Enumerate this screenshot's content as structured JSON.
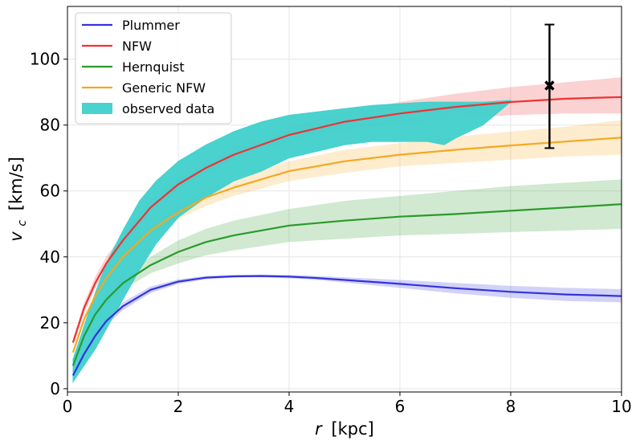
{
  "chart_data": {
    "type": "line",
    "xlabel_var": "r",
    "xlabel_unit": "[kpc]",
    "ylabel_var": "v",
    "ylabel_sub": "c",
    "ylabel_unit": "[km/s]",
    "xlim": [
      0,
      10
    ],
    "ylim": [
      -1,
      116
    ],
    "xticks": [
      0,
      2,
      4,
      6,
      8,
      10
    ],
    "yticks": [
      0,
      20,
      40,
      60,
      80,
      100
    ],
    "grid": true,
    "legend_position": "top-left",
    "series": [
      {
        "name": "Plummer",
        "color": "#3333dd",
        "x": [
          0.1,
          0.3,
          0.5,
          0.7,
          1,
          1.5,
          2,
          2.5,
          3,
          3.5,
          4,
          4.5,
          5,
          6,
          7,
          8,
          9,
          10
        ],
        "y": [
          4,
          10.5,
          16,
          20.5,
          25,
          30,
          32.5,
          33.7,
          34.1,
          34.2,
          34,
          33.6,
          33,
          31.8,
          30.5,
          29.4,
          28.6,
          28.1
        ],
        "band_lower": [
          3.5,
          9.5,
          14.8,
          19.3,
          23.8,
          29,
          31.8,
          33.2,
          33.7,
          33.8,
          33.5,
          33,
          32.2,
          30.6,
          28.9,
          27.6,
          26.6,
          26.2
        ],
        "band_upper": [
          4.5,
          11.5,
          17.2,
          21.7,
          26.2,
          31,
          33.2,
          34.2,
          34.5,
          34.6,
          34.5,
          34.2,
          33.8,
          33,
          32.1,
          31.2,
          30.6,
          30.2
        ]
      },
      {
        "name": "NFW",
        "color": "#ee3333",
        "x": [
          0.1,
          0.3,
          0.5,
          0.7,
          1,
          1.5,
          2,
          2.5,
          3,
          4,
          5,
          6,
          7,
          8,
          9,
          10
        ],
        "y": [
          14,
          24.5,
          32,
          38,
          45,
          55,
          62,
          67,
          71,
          77,
          81,
          83.5,
          85.5,
          87,
          88,
          88.5
        ],
        "band_lower": [
          13,
          23,
          30.5,
          36.5,
          43.5,
          53.5,
          60.5,
          65.5,
          69.5,
          75,
          78.5,
          80.5,
          82,
          83,
          83.5,
          83.5
        ],
        "band_upper": [
          15,
          26,
          34,
          40,
          47,
          57,
          64,
          69,
          73,
          79.5,
          84,
          87,
          89.5,
          91.5,
          93,
          94.5
        ]
      },
      {
        "name": "Hernquist",
        "color": "#2a9a2a",
        "x": [
          0.1,
          0.3,
          0.5,
          0.7,
          1,
          1.5,
          2,
          2.5,
          3,
          4,
          5,
          6,
          7,
          8,
          9,
          10
        ],
        "y": [
          7,
          16,
          22.5,
          27,
          32,
          37.5,
          41.5,
          44.5,
          46.5,
          49.5,
          51,
          52.2,
          53,
          54,
          55,
          56
        ],
        "band_lower": [
          6.5,
          15,
          21,
          25.5,
          30,
          35,
          38,
          40.5,
          42,
          44.5,
          45.5,
          46.5,
          47,
          47.5,
          48,
          48.5
        ],
        "band_upper": [
          7.5,
          17,
          24,
          28.5,
          34,
          40,
          45,
          48.5,
          51,
          54.5,
          57,
          58.5,
          60,
          61.5,
          62.5,
          63.5
        ]
      },
      {
        "name": "Generic NFW",
        "color": "#f5a820",
        "x": [
          0.1,
          0.3,
          0.5,
          0.7,
          1,
          1.5,
          2,
          2.5,
          3,
          4,
          5,
          6,
          7,
          8,
          9,
          10
        ],
        "y": [
          11,
          21,
          28,
          33.5,
          40,
          48,
          53.5,
          58,
          61,
          66,
          69,
          71,
          72.5,
          73.8,
          75,
          76.2
        ],
        "band_lower": [
          10.5,
          20,
          27,
          32,
          38.5,
          46.5,
          51.5,
          55.5,
          58.5,
          63,
          65.5,
          67.5,
          68.5,
          69.5,
          70.5,
          71
        ],
        "band_upper": [
          11.5,
          22,
          29,
          35,
          41.5,
          49.5,
          55.5,
          60.5,
          63.5,
          69,
          72.5,
          74.5,
          76.5,
          78,
          79.5,
          81.5
        ]
      }
    ],
    "observed_band": {
      "name": "observed data",
      "color": "#40d0cc",
      "x": [
        0.1,
        0.3,
        0.5,
        0.7,
        1,
        1.3,
        1.6,
        2,
        2.5,
        3,
        3.5,
        4,
        4.5,
        5,
        5.5,
        6,
        6.5,
        6.8,
        7,
        7.5,
        8
      ],
      "lower": [
        2,
        7,
        12,
        18,
        27,
        36,
        44,
        52,
        58,
        63,
        66,
        70,
        72,
        74,
        75,
        75,
        75,
        74,
        76,
        80,
        87
      ],
      "upper": [
        9,
        19,
        29,
        38,
        48,
        57,
        63,
        69,
        74,
        78,
        81,
        83,
        84,
        85,
        86,
        86.5,
        87,
        87,
        87,
        87,
        87.5
      ]
    },
    "errorbar_point": {
      "x": 8.7,
      "y": 92,
      "lower": 73,
      "upper": 110.5,
      "color": "#000000"
    }
  }
}
